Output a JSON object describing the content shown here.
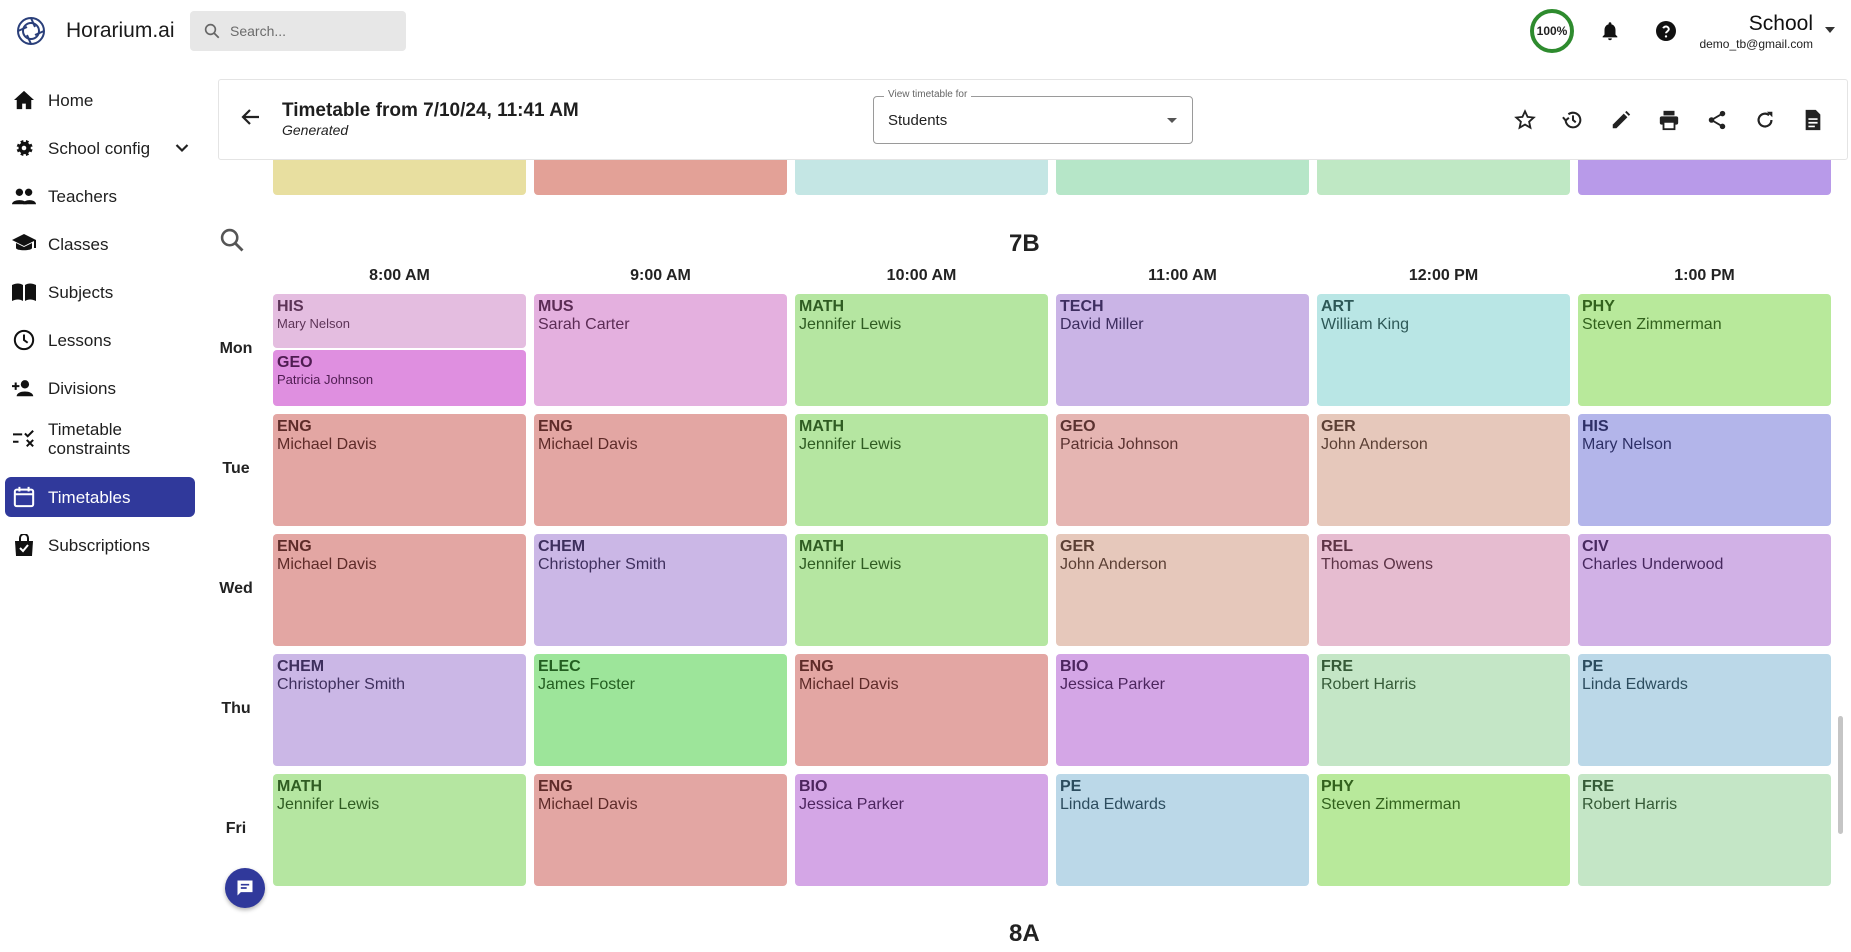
{
  "app": {
    "brand": "Horarium.ai",
    "search_placeholder": "Search...",
    "progress_label": "100%",
    "school_name": "School",
    "school_email": "demo_tb@gmail.com"
  },
  "sidebar": {
    "items": [
      {
        "label": "Home",
        "icon": "home-icon"
      },
      {
        "label": "School config",
        "icon": "gear-icon"
      },
      {
        "label": "Teachers",
        "icon": "people-icon"
      },
      {
        "label": "Classes",
        "icon": "school-icon"
      },
      {
        "label": "Subjects",
        "icon": "book-icon"
      },
      {
        "label": "Lessons",
        "icon": "clock-icon"
      },
      {
        "label": "Divisions",
        "icon": "person-add-icon"
      },
      {
        "label": "Timetable constraints",
        "icon": "rule-icon"
      },
      {
        "label": "Timetables",
        "icon": "calendar-icon",
        "active": true
      },
      {
        "label": "Subscriptions",
        "icon": "bag-icon"
      }
    ]
  },
  "header": {
    "title": "Timetable from 7/10/24, 11:41 AM",
    "subtitle": "Generated",
    "view_label": "View timetable for",
    "view_value": "Students"
  },
  "timetable": {
    "class_title": "7B",
    "next_class_title": "8A",
    "times": [
      "8:00 AM",
      "9:00 AM",
      "10:00 AM",
      "11:00 AM",
      "12:00 PM",
      "1:00 PM"
    ],
    "days": [
      "Mon",
      "Tue",
      "Wed",
      "Thu",
      "Fri"
    ],
    "previous_row_colors": [
      "#e8dfa0",
      "#e3a197",
      "#c4e6e4",
      "#b6e6c8",
      "#bfe8c4",
      "#b89ae9"
    ],
    "mon_split": [
      {
        "subject": "HIS",
        "teacher": "Mary Nelson",
        "color": "#e4bde0",
        "text": "#5d3457"
      },
      {
        "subject": "GEO",
        "teacher": "Patricia Johnson",
        "color": "#df8fe0",
        "text": "#4f1c52"
      }
    ],
    "rows": [
      [
        null,
        {
          "subject": "MUS",
          "teacher": "Sarah Carter",
          "color": "#e4b0df",
          "text": "#5b2c55"
        },
        {
          "subject": "MATH",
          "teacher": "Jennifer Lewis",
          "color": "#b5e6a1",
          "text": "#2f5c22"
        },
        {
          "subject": "TECH",
          "teacher": "David Miller",
          "color": "#cab4e6",
          "text": "#3d2d5f"
        },
        {
          "subject": "ART",
          "teacher": "William King",
          "color": "#b9e6e5",
          "text": "#2d5857"
        },
        {
          "subject": "PHY",
          "teacher": "Steven Zimmerman",
          "color": "#b8e99b",
          "text": "#32611d"
        }
      ],
      [
        {
          "subject": "ENG",
          "teacher": "Michael Davis",
          "color": "#e3a6a3",
          "text": "#5e2b29"
        },
        {
          "subject": "ENG",
          "teacher": "Michael Davis",
          "color": "#e3a6a3",
          "text": "#5e2b29"
        },
        {
          "subject": "MATH",
          "teacher": "Jennifer Lewis",
          "color": "#b5e6a1",
          "text": "#2f5c22"
        },
        {
          "subject": "GEO",
          "teacher": "Patricia Johnson",
          "color": "#e5b5b2",
          "text": "#5a3230"
        },
        {
          "subject": "GER",
          "teacher": "John Anderson",
          "color": "#e6c8bb",
          "text": "#5b3f34"
        },
        {
          "subject": "HIS",
          "teacher": "Mary Nelson",
          "color": "#b3b5ea",
          "text": "#2d2f66"
        }
      ],
      [
        {
          "subject": "ENG",
          "teacher": "Michael Davis",
          "color": "#e3a6a3",
          "text": "#5e2b29"
        },
        {
          "subject": "CHEM",
          "teacher": "Christopher Smith",
          "color": "#cbb7e6",
          "text": "#3e2f5d"
        },
        {
          "subject": "MATH",
          "teacher": "Jennifer Lewis",
          "color": "#b5e6a1",
          "text": "#2f5c22"
        },
        {
          "subject": "GER",
          "teacher": "John Anderson",
          "color": "#e6c8bb",
          "text": "#5b3f34"
        },
        {
          "subject": "REL",
          "teacher": "Thomas Owens",
          "color": "#e6bcd0",
          "text": "#5c3346"
        },
        {
          "subject": "CIV",
          "teacher": "Charles Underwood",
          "color": "#d1b1e6",
          "text": "#46285e"
        }
      ],
      [
        {
          "subject": "CHEM",
          "teacher": "Christopher Smith",
          "color": "#cbb7e6",
          "text": "#3e2f5d"
        },
        {
          "subject": "ELEC",
          "teacher": "James Foster",
          "color": "#9de59a",
          "text": "#235e20"
        },
        {
          "subject": "ENG",
          "teacher": "Michael Davis",
          "color": "#e3a6a3",
          "text": "#5e2b29"
        },
        {
          "subject": "BIO",
          "teacher": "Jessica Parker",
          "color": "#d4a6e6",
          "text": "#4c255e"
        },
        {
          "subject": "FRE",
          "teacher": "Robert Harris",
          "color": "#c4e6c6",
          "text": "#355a37"
        },
        {
          "subject": "PE",
          "teacher": "Linda Edwards",
          "color": "#bbd8e8",
          "text": "#2c4c5e"
        }
      ],
      [
        {
          "subject": "MATH",
          "teacher": "Jennifer Lewis",
          "color": "#b5e6a1",
          "text": "#2f5c22"
        },
        {
          "subject": "ENG",
          "teacher": "Michael Davis",
          "color": "#e3a6a3",
          "text": "#5e2b29"
        },
        {
          "subject": "BIO",
          "teacher": "Jessica Parker",
          "color": "#d4a6e6",
          "text": "#4c255e"
        },
        {
          "subject": "PE",
          "teacher": "Linda Edwards",
          "color": "#bbd8e8",
          "text": "#2c4c5e"
        },
        {
          "subject": "PHY",
          "teacher": "Steven Zimmerman",
          "color": "#b8e99b",
          "text": "#32611d"
        },
        {
          "subject": "FRE",
          "teacher": "Robert Harris",
          "color": "#c4e6c6",
          "text": "#355a37"
        }
      ]
    ]
  }
}
